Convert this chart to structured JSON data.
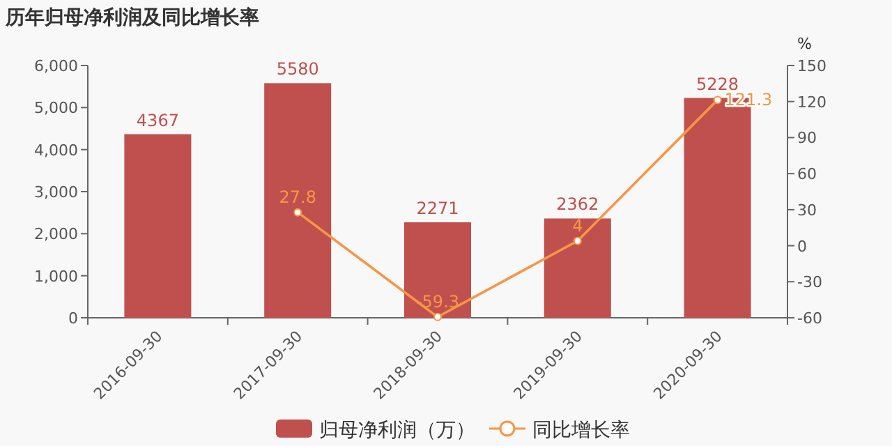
{
  "chart_data": {
    "type": "bar",
    "title": "历年归母净利润及同比增长率",
    "y2label": "%",
    "categories": [
      "2016-09-30",
      "2017-09-30",
      "2018-09-30",
      "2019-09-30",
      "2020-09-30"
    ],
    "series": [
      {
        "name": "归母净利润（万）",
        "color": "#c0504d",
        "values": [
          4367,
          5580,
          2271,
          2362,
          5228
        ]
      },
      {
        "name": "同比增长率",
        "type": "line",
        "axis": "y2",
        "color": "#f79646",
        "values": [
          null,
          27.8,
          -59.3,
          4,
          121.3
        ]
      }
    ],
    "ylim": [
      0,
      6000
    ],
    "yticks": [
      0,
      {
        "value": 1000,
        "label": "1,000"
      },
      {
        "value": 2000,
        "label": "2,000"
      },
      {
        "value": 3000,
        "label": "3,000"
      },
      {
        "value": 4000,
        "label": "4,000"
      },
      {
        "value": 5000,
        "label": "5,000"
      },
      {
        "value": 6000,
        "label": "6,000"
      }
    ],
    "y2lim": [
      -60,
      150
    ],
    "y2ticks": [
      -60,
      -30,
      0,
      30,
      60,
      90,
      120,
      150
    ],
    "data_labels": true,
    "legend": "bottom",
    "marker": "circle",
    "grid": false
  }
}
